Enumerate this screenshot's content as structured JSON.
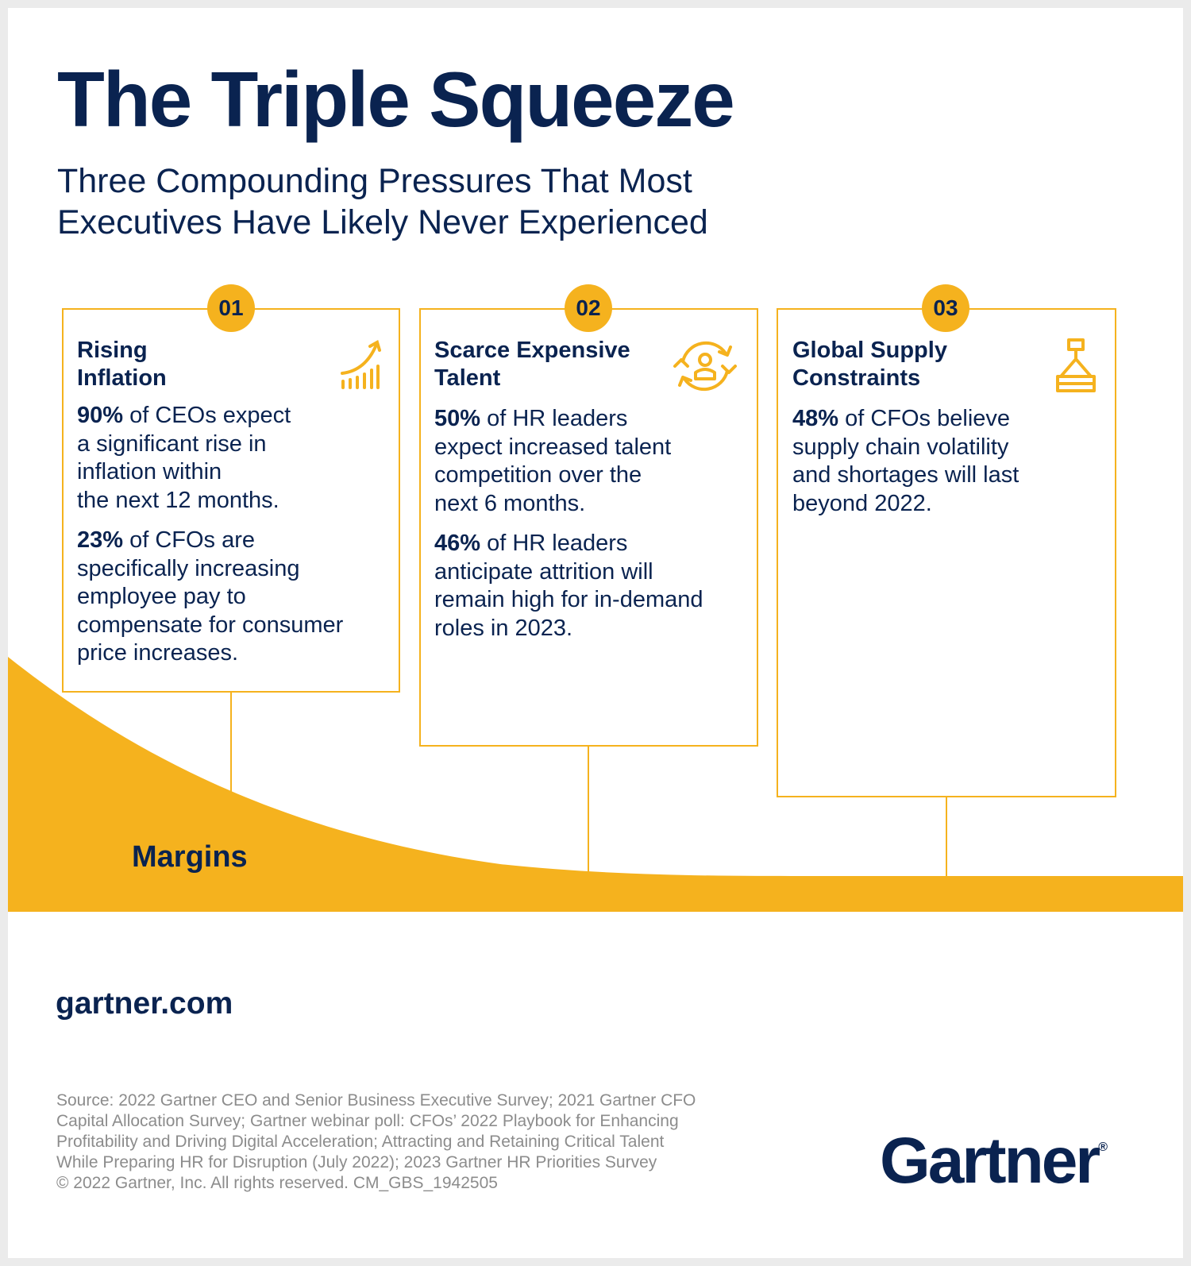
{
  "title": "The Triple Squeeze",
  "subtitle": {
    "line1": "Three Compounding Pressures That Most",
    "line2": "Executives Have Likely Never Experienced"
  },
  "colors": {
    "navy": "#0a2350",
    "accent": "#f5b21e",
    "footnote": "#8c8c8c"
  },
  "pressures": [
    {
      "number": "01",
      "title_lines": [
        "Rising",
        "Inflation"
      ],
      "icon": "rising-chart-icon",
      "stats": [
        {
          "value": "90%",
          "lines": [
            " of CEOs expect",
            "a significant rise in",
            "inflation within",
            "the next 12 months."
          ]
        },
        {
          "value": "23%",
          "lines": [
            " of CFOs are",
            "specifically increasing",
            "employee pay to",
            "compensate for consumer",
            "price increases."
          ]
        }
      ]
    },
    {
      "number": "02",
      "title_lines": [
        "Scarce Expensive",
        "Talent"
      ],
      "icon": "talent-cycle-icon",
      "stats": [
        {
          "value": "50%",
          "lines": [
            " of HR leaders",
            "expect increased talent",
            "competition over the",
            "next 6 months."
          ]
        },
        {
          "value": "46%",
          "lines": [
            " of HR leaders",
            "anticipate attrition will",
            "remain high for in-demand",
            "roles in 2023."
          ]
        }
      ]
    },
    {
      "number": "03",
      "title_lines": [
        "Global Supply",
        "Constraints"
      ],
      "icon": "crane-hook-icon",
      "stats": [
        {
          "value": "48%",
          "lines": [
            " of CFOs believe",
            "supply chain volatility",
            "and shortages will last",
            "beyond 2022."
          ]
        }
      ]
    }
  ],
  "margins_label": "Margins",
  "website": "gartner.com",
  "source_lines": [
    "Source: 2022 Gartner CEO and Senior Business Executive Survey; 2021 Gartner CFO",
    "Capital Allocation Survey; Gartner webinar poll: CFOs’ 2022 Playbook for Enhancing",
    "Profitability and Driving Digital Acceleration; Attracting and Retaining Critical Talent",
    "While Preparing HR for Disruption (July 2022); 2023 Gartner HR Priorities Survey",
    "© 2022 Gartner, Inc. All rights reserved. CM_GBS_1942505"
  ],
  "logo": {
    "text": "Gartner",
    "mark": "®"
  }
}
